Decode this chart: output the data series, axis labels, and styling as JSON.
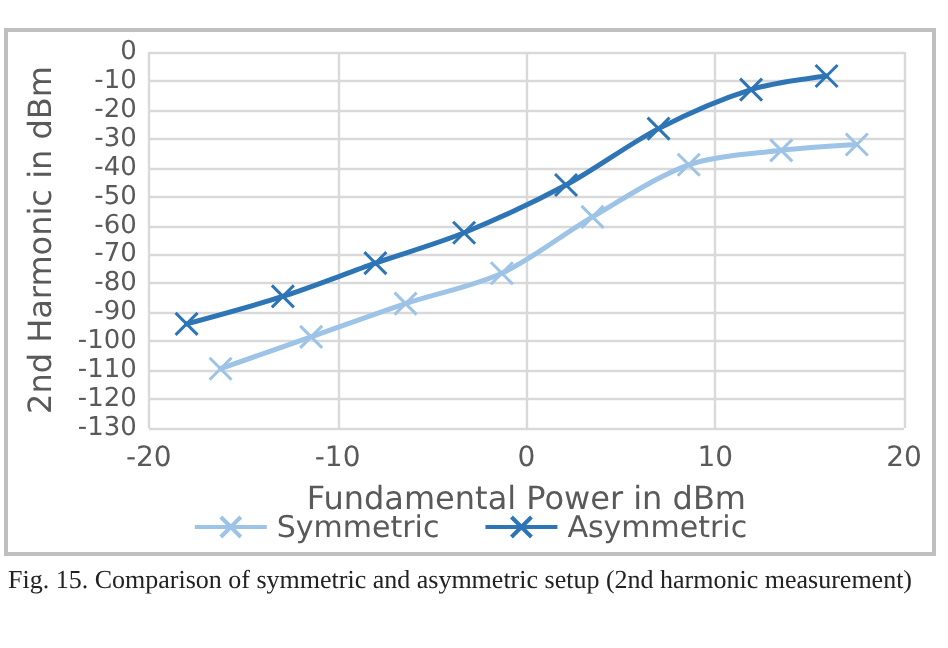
{
  "chart_data": {
    "type": "line",
    "xlabel": "Fundamental Power in dBm",
    "ylabel": "2nd Harmonic in dBm",
    "xlim": [
      -20,
      20
    ],
    "xticks": [
      -20,
      -10,
      0,
      10,
      20
    ],
    "ylim": [
      -130,
      0
    ],
    "yticks": [
      0,
      -10,
      -20,
      -30,
      -40,
      -50,
      -60,
      -70,
      -80,
      -90,
      -100,
      -110,
      -120,
      -130
    ],
    "series": [
      {
        "name": "Symmetric",
        "color": "#9dc3e6",
        "x": [
          -16.2,
          -11.4,
          -6.4,
          -1.3,
          3.5,
          8.6,
          13.5,
          17.5
        ],
        "values": [
          -109.5,
          -98.5,
          -87,
          -76.5,
          -57,
          -39,
          -34,
          -32
        ]
      },
      {
        "name": "Asymmetric",
        "color": "#2e75b6",
        "x": [
          -18,
          -12.9,
          -8,
          -3.3,
          2.1,
          7,
          11.9,
          15.9
        ],
        "values": [
          -94,
          -84.5,
          -73,
          -62.5,
          -46,
          -26.5,
          -13,
          -8.3
        ]
      }
    ],
    "grid": true,
    "legend": "bottom",
    "marker": "cross",
    "line_style": "solid",
    "annotations": [
      "Fig. 15. Comparison of symmetric and asymmetric setup (2nd harmonic measurement)"
    ]
  }
}
